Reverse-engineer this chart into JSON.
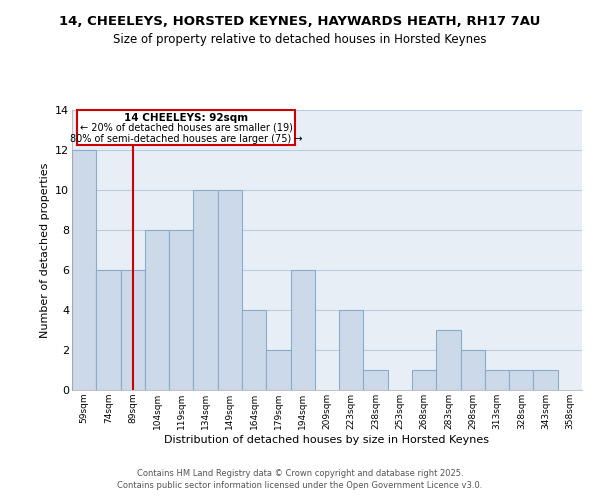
{
  "title1": "14, CHEELEYS, HORSTED KEYNES, HAYWARDS HEATH, RH17 7AU",
  "title2": "Size of property relative to detached houses in Horsted Keynes",
  "xlabel": "Distribution of detached houses by size in Horsted Keynes",
  "ylabel": "Number of detached properties",
  "bins": [
    "59sqm",
    "74sqm",
    "89sqm",
    "104sqm",
    "119sqm",
    "134sqm",
    "149sqm",
    "164sqm",
    "179sqm",
    "194sqm",
    "209sqm",
    "223sqm",
    "238sqm",
    "253sqm",
    "268sqm",
    "283sqm",
    "298sqm",
    "313sqm",
    "328sqm",
    "343sqm",
    "358sqm"
  ],
  "values": [
    12,
    6,
    6,
    8,
    8,
    10,
    10,
    4,
    2,
    6,
    0,
    4,
    1,
    0,
    1,
    3,
    2,
    1,
    1,
    1,
    0
  ],
  "bar_color": "#ccd9e8",
  "bar_edge_color": "#8aaccc",
  "grid_color": "#b8cce0",
  "bg_color": "#e8eef5",
  "vline_x_idx": 2,
  "vline_color": "#cc0000",
  "annotation_title": "14 CHEELEYS: 92sqm",
  "annotation_line1": "← 20% of detached houses are smaller (19)",
  "annotation_line2": "80% of semi-detached houses are larger (75) →",
  "ylim": [
    0,
    14
  ],
  "yticks": [
    0,
    2,
    4,
    6,
    8,
    10,
    12,
    14
  ],
  "footer1": "Contains HM Land Registry data © Crown copyright and database right 2025.",
  "footer2": "Contains public sector information licensed under the Open Government Licence v3.0."
}
